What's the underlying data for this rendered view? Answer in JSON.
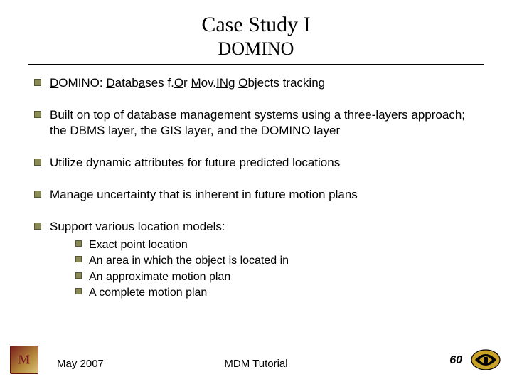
{
  "title": "Case Study I",
  "subtitle": "DOMINO",
  "bullets": [
    {
      "html": "<span class='u'>D</span>OMINO: <span class='u'>D</span>atab<span class='u'>a</span>ses f.<span class='u'>O</span>r <span class='u'>M</span>ov.<span class='u'>IN</span>g <span class='u'>O</span>bjects tracking"
    },
    {
      "text": "Built on top of database management systems using a three-layers approach; the DBMS layer, the GIS layer, and the DOMINO layer"
    },
    {
      "text": "Utilize dynamic attributes for future predicted locations"
    },
    {
      "text": "Manage uncertainty that is inherent in future motion plans"
    },
    {
      "text": "Support various location models:",
      "sub": [
        "Exact point location",
        "An area in which the object is located in",
        "An approximate motion plan",
        "A complete motion plan"
      ]
    }
  ],
  "footer": {
    "date": "May 2007",
    "center": "MDM Tutorial",
    "page": "60"
  },
  "colors": {
    "bullet_fill": "#8a8a55",
    "bullet_border": "#555533",
    "text": "#000000",
    "background": "#ffffff"
  },
  "fonts": {
    "title_family": "Times New Roman",
    "body_family": "Arial",
    "title_size_pt": 30,
    "subtitle_size_pt": 26,
    "body_size_pt": 17,
    "sub_size_pt": 16
  }
}
